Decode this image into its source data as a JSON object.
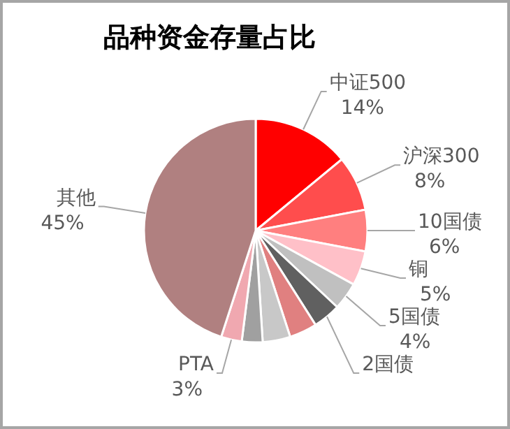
{
  "chart_data": {
    "type": "pie",
    "title": "品种资金存量占比",
    "categories": [
      "中证500",
      "沪深300",
      "10国债",
      "铜",
      "5国债",
      "2国债",
      null,
      null,
      null,
      "PTA",
      "其他"
    ],
    "values": [
      14,
      8,
      6,
      5,
      4,
      4,
      4,
      4,
      3,
      3,
      45
    ],
    "value_labels": [
      "14%",
      "8%",
      "6%",
      "5%",
      "4%",
      null,
      null,
      null,
      null,
      "3%",
      "45%"
    ],
    "colors": [
      "#ff0000",
      "#ff4d4d",
      "#ff7f7f",
      "#ffc0c8",
      "#c0c0c0",
      "#606060",
      "#e08080",
      "#c8c8c8",
      "#a0a0a0",
      "#f0a8b0",
      "#b08080"
    ]
  }
}
